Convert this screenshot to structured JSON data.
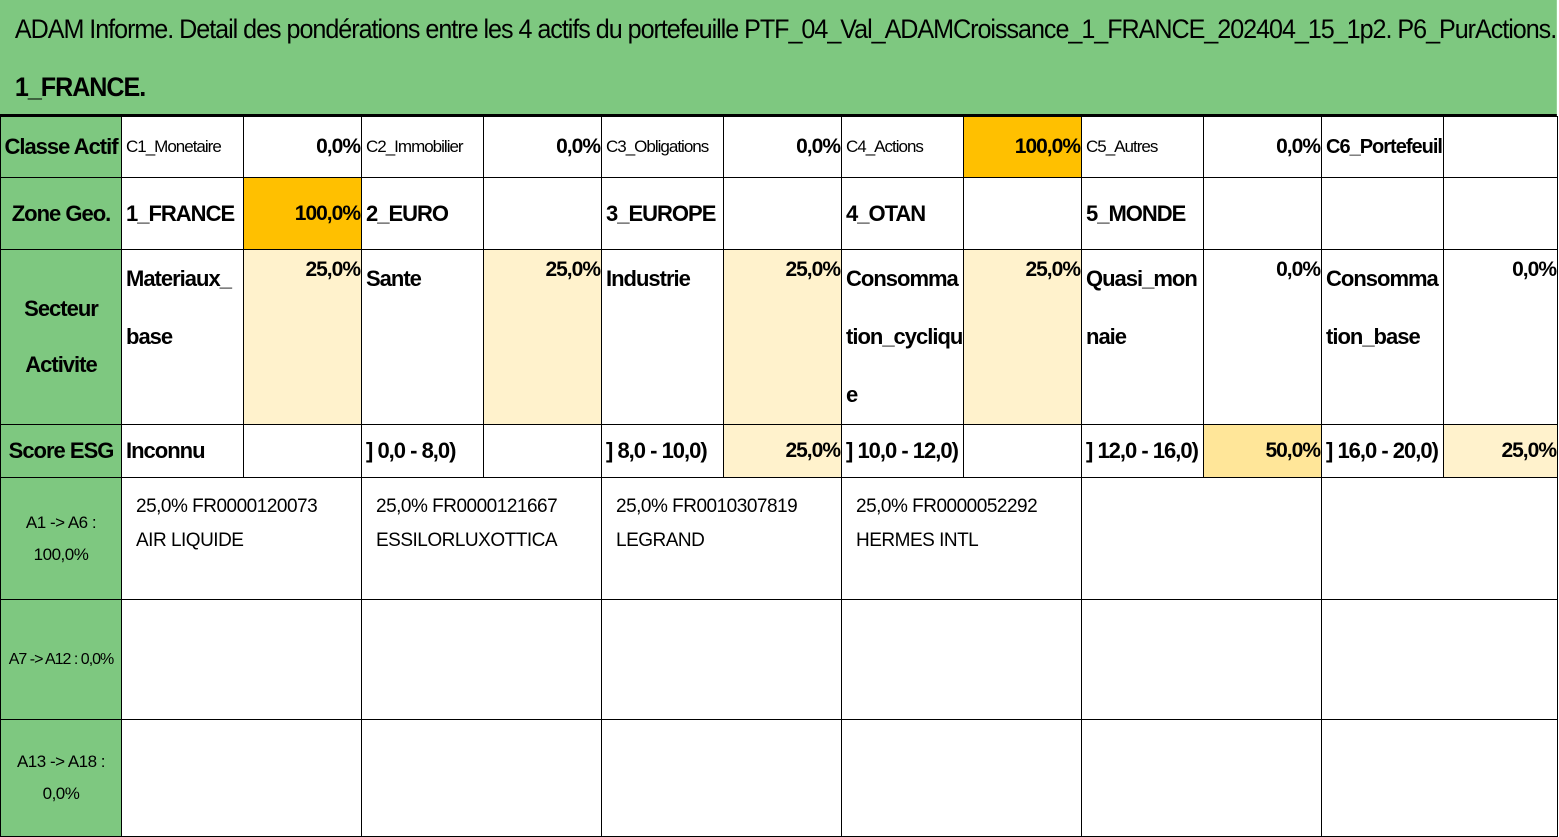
{
  "title": {
    "line1": "ADAM Informe. Detail des pondérations entre les 4 actifs du portefeuille PTF_04_Val_ADAMCroissance_1_FRANCE_202404_15_1p2. P6_PurActions.",
    "line2": "1_FRANCE."
  },
  "rows": {
    "classe": {
      "header": "Classe Actif",
      "cells": [
        {
          "label": "C1_Monetaire",
          "pct": "0,0%"
        },
        {
          "label": "C2_Immobilier",
          "pct": "0,0%"
        },
        {
          "label": "C3_Obligations",
          "pct": "0,0%"
        },
        {
          "label": "C4_Actions",
          "pct": "100,0%"
        },
        {
          "label": "C5_Autres",
          "pct": "0,0%"
        },
        {
          "label": "C6_Portefeuill",
          "pct": ""
        }
      ]
    },
    "zone": {
      "header": "Zone Geo.",
      "cells": [
        {
          "label": "1_FRANCE",
          "pct": "100,0%"
        },
        {
          "label": "2_EURO",
          "pct": ""
        },
        {
          "label": "3_EUROPE",
          "pct": ""
        },
        {
          "label": "4_OTAN",
          "pct": ""
        },
        {
          "label": "5_MONDE",
          "pct": ""
        },
        {
          "label": "",
          "pct": ""
        }
      ]
    },
    "secteur": {
      "header": "Secteur Activite",
      "cells": [
        {
          "label": "Materiaux_base",
          "pct": "25,0%"
        },
        {
          "label": "Sante",
          "pct": "25,0%"
        },
        {
          "label": "Industrie",
          "pct": "25,0%"
        },
        {
          "label": "Consommation_cyclique",
          "pct": "25,0%"
        },
        {
          "label": "Quasi_monnaie",
          "pct": "0,0%"
        },
        {
          "label": "Consommation_base",
          "pct": "0,0%"
        }
      ]
    },
    "esg": {
      "header": "Score ESG",
      "cells": [
        {
          "label": "Inconnu",
          "pct": ""
        },
        {
          "label": "] 0,0 - 8,0)",
          "pct": ""
        },
        {
          "label": "] 8,0 - 10,0)",
          "pct": "25,0%"
        },
        {
          "label": "] 10,0 - 12,0)",
          "pct": ""
        },
        {
          "label": "] 12,0 - 16,0)",
          "pct": "50,0%"
        },
        {
          "label": "] 16,0 - 20,0)",
          "pct": "25,0%"
        }
      ]
    }
  },
  "assets": {
    "group1": {
      "label": "A1 -> A6 : 100,0%",
      "items": [
        {
          "line1": "25,0% FR0000120073",
          "line2": "AIR LIQUIDE"
        },
        {
          "line1": "25,0% FR0000121667",
          "line2": "ESSILORLUXOTTICA"
        },
        {
          "line1": "25,0% FR0010307819",
          "line2": "LEGRAND"
        },
        {
          "line1": "25,0% FR0000052292",
          "line2": "HERMES INTL"
        },
        {
          "line1": "",
          "line2": ""
        },
        {
          "line1": "",
          "line2": ""
        }
      ]
    },
    "group2": {
      "label": "A7 -> A12 : 0,0%"
    },
    "group3": {
      "label": "A13 -> A18 : 0,0%"
    }
  },
  "colors": {
    "green": "#7ec880",
    "orange": "#ffc000",
    "light": "#fff2cc",
    "mid": "#ffe699"
  }
}
